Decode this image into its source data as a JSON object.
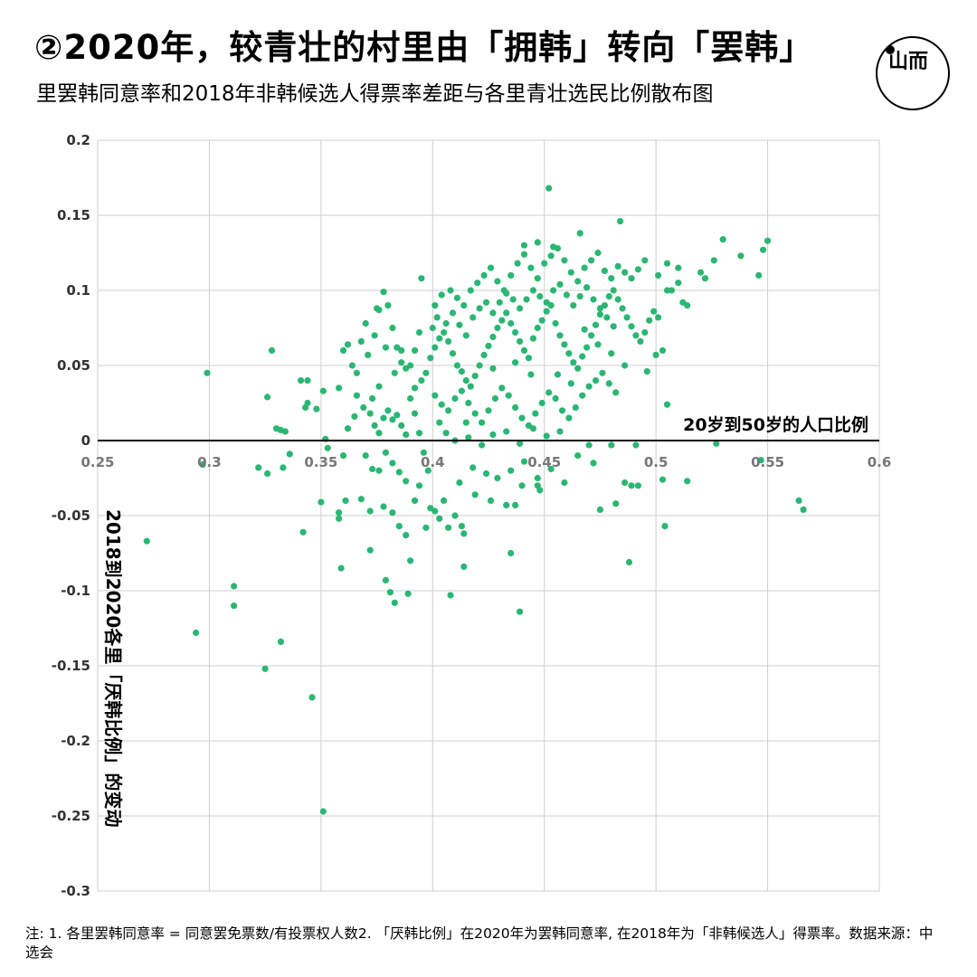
{
  "header": {
    "title": "②2020年，较青壮的村里由「拥韩」转向「罢韩」",
    "subtitle": "里罢韩同意率和2018年非韩候选人得票率差距与各里青壮选民比例散布图"
  },
  "logo": {
    "icon": "logo-circle-icon",
    "glyph": "山而"
  },
  "footnote": "注: 1. 各里罢韩同意率 = 同意罢免票数/有投票权人数2. 「厌韩比例」在2020年为罢韩同意率, 在2018年为「非韩候选人」得票率。数据来源：中选会",
  "colors": {
    "point": "#2bb673",
    "grid": "#cfcfcf",
    "axis": "#000000"
  },
  "chart_data": {
    "type": "scatter",
    "xlabel": "20岁到50岁的人口比例",
    "ylabel": "2018到2020各里「厌韩比例」的变动",
    "xlim": [
      0.25,
      0.6
    ],
    "ylim": [
      -0.3,
      0.2
    ],
    "xticks": [
      0.25,
      0.3,
      0.35,
      0.4,
      0.45,
      0.5,
      0.55,
      0.6
    ],
    "yticks": [
      0.2,
      0.15,
      0.1,
      0.05,
      0,
      -0.05,
      -0.1,
      -0.15,
      -0.2,
      -0.25,
      -0.3
    ],
    "xtick_labels": [
      "0.25",
      "0.3",
      "0.35",
      "0.4",
      "0.45",
      "0.5",
      "0.55",
      "0.6"
    ],
    "ytick_labels": [
      "0.2",
      "0.15",
      "0.1",
      "0.05",
      "0",
      "-0.05",
      "-0.1",
      "-0.15",
      "-0.2",
      "-0.25",
      "-0.3"
    ],
    "grid": true,
    "points": [
      [
        0.299,
        0.045
      ],
      [
        0.297,
        -0.016
      ],
      [
        0.272,
        -0.067
      ],
      [
        0.294,
        -0.128
      ],
      [
        0.311,
        -0.097
      ],
      [
        0.311,
        -0.11
      ],
      [
        0.326,
        0.029
      ],
      [
        0.328,
        0.06
      ],
      [
        0.322,
        -0.018
      ],
      [
        0.326,
        -0.022
      ],
      [
        0.33,
        0.008
      ],
      [
        0.332,
        0.007
      ],
      [
        0.333,
        -0.018
      ],
      [
        0.334,
        0.006
      ],
      [
        0.336,
        -0.009
      ],
      [
        0.332,
        -0.134
      ],
      [
        0.325,
        -0.152
      ],
      [
        0.341,
        0.04
      ],
      [
        0.344,
        0.04
      ],
      [
        0.344,
        0.025
      ],
      [
        0.343,
        0.022
      ],
      [
        0.348,
        0.021
      ],
      [
        0.342,
        -0.061
      ],
      [
        0.346,
        -0.171
      ],
      [
        0.351,
        -0.247
      ],
      [
        0.35,
        -0.041
      ],
      [
        0.352,
        0.001
      ],
      [
        0.353,
        -0.005
      ],
      [
        0.351,
        0.033
      ],
      [
        0.358,
        0.035
      ],
      [
        0.36,
        0.06
      ],
      [
        0.362,
        0.064
      ],
      [
        0.364,
        0.05
      ],
      [
        0.366,
        0.045
      ],
      [
        0.366,
        0.03
      ],
      [
        0.365,
        0.016
      ],
      [
        0.362,
        0.008
      ],
      [
        0.36,
        -0.01
      ],
      [
        0.361,
        -0.04
      ],
      [
        0.358,
        -0.048
      ],
      [
        0.358,
        -0.052
      ],
      [
        0.359,
        -0.085
      ],
      [
        0.368,
        0.066
      ],
      [
        0.37,
        0.078
      ],
      [
        0.371,
        0.057
      ],
      [
        0.374,
        0.07
      ],
      [
        0.375,
        0.088
      ],
      [
        0.376,
        0.087
      ],
      [
        0.378,
        0.099
      ],
      [
        0.38,
        0.09
      ],
      [
        0.382,
        0.075
      ],
      [
        0.384,
        0.062
      ],
      [
        0.386,
        0.06
      ],
      [
        0.388,
        0.048
      ],
      [
        0.39,
        0.05
      ],
      [
        0.392,
        0.06
      ],
      [
        0.394,
        0.072
      ],
      [
        0.395,
        0.108
      ],
      [
        0.372,
        0.018
      ],
      [
        0.374,
        0.01
      ],
      [
        0.376,
        0.005
      ],
      [
        0.378,
        0.015
      ],
      [
        0.38,
        0.02
      ],
      [
        0.382,
        0.014
      ],
      [
        0.384,
        0.017
      ],
      [
        0.386,
        0.01
      ],
      [
        0.388,
        0.004
      ],
      [
        0.37,
        -0.01
      ],
      [
        0.373,
        -0.019
      ],
      [
        0.376,
        -0.02
      ],
      [
        0.379,
        -0.008
      ],
      [
        0.382,
        -0.015
      ],
      [
        0.385,
        -0.021
      ],
      [
        0.388,
        -0.027
      ],
      [
        0.368,
        -0.039
      ],
      [
        0.372,
        -0.047
      ],
      [
        0.378,
        -0.044
      ],
      [
        0.382,
        -0.048
      ],
      [
        0.385,
        -0.057
      ],
      [
        0.388,
        -0.063
      ],
      [
        0.372,
        -0.073
      ],
      [
        0.379,
        -0.093
      ],
      [
        0.381,
        -0.101
      ],
      [
        0.383,
        -0.108
      ],
      [
        0.389,
        -0.102
      ],
      [
        0.39,
        -0.08
      ],
      [
        0.397,
        -0.058
      ],
      [
        0.399,
        -0.045
      ],
      [
        0.401,
        -0.047
      ],
      [
        0.403,
        -0.052
      ],
      [
        0.405,
        -0.04
      ],
      [
        0.407,
        -0.058
      ],
      [
        0.41,
        -0.05
      ],
      [
        0.413,
        -0.057
      ],
      [
        0.414,
        -0.062
      ],
      [
        0.414,
        -0.084
      ],
      [
        0.408,
        -0.103
      ],
      [
        0.39,
        0.028
      ],
      [
        0.392,
        0.035
      ],
      [
        0.395,
        0.04
      ],
      [
        0.397,
        0.045
      ],
      [
        0.399,
        0.055
      ],
      [
        0.401,
        0.062
      ],
      [
        0.403,
        0.068
      ],
      [
        0.405,
        0.072
      ],
      [
        0.407,
        0.066
      ],
      [
        0.409,
        0.058
      ],
      [
        0.411,
        0.05
      ],
      [
        0.413,
        0.046
      ],
      [
        0.415,
        0.04
      ],
      [
        0.417,
        0.036
      ],
      [
        0.419,
        0.043
      ],
      [
        0.421,
        0.05
      ],
      [
        0.423,
        0.057
      ],
      [
        0.425,
        0.063
      ],
      [
        0.427,
        0.069
      ],
      [
        0.429,
        0.075
      ],
      [
        0.431,
        0.08
      ],
      [
        0.433,
        0.085
      ],
      [
        0.435,
        0.078
      ],
      [
        0.437,
        0.072
      ],
      [
        0.439,
        0.066
      ],
      [
        0.441,
        0.06
      ],
      [
        0.443,
        0.055
      ],
      [
        0.445,
        0.068
      ],
      [
        0.447,
        0.075
      ],
      [
        0.449,
        0.08
      ],
      [
        0.451,
        0.086
      ],
      [
        0.453,
        0.09
      ],
      [
        0.455,
        0.078
      ],
      [
        0.457,
        0.07
      ],
      [
        0.459,
        0.064
      ],
      [
        0.461,
        0.058
      ],
      [
        0.463,
        0.052
      ],
      [
        0.465,
        0.048
      ],
      [
        0.467,
        0.056
      ],
      [
        0.469,
        0.062
      ],
      [
        0.471,
        0.07
      ],
      [
        0.473,
        0.077
      ],
      [
        0.475,
        0.084
      ],
      [
        0.477,
        0.09
      ],
      [
        0.479,
        0.096
      ],
      [
        0.481,
        0.1
      ],
      [
        0.483,
        0.094
      ],
      [
        0.485,
        0.088
      ],
      [
        0.487,
        0.082
      ],
      [
        0.489,
        0.076
      ],
      [
        0.491,
        0.07
      ],
      [
        0.493,
        0.066
      ],
      [
        0.495,
        0.072
      ],
      [
        0.497,
        0.08
      ],
      [
        0.499,
        0.086
      ],
      [
        0.401,
        0.09
      ],
      [
        0.404,
        0.097
      ],
      [
        0.408,
        0.1
      ],
      [
        0.411,
        0.095
      ],
      [
        0.414,
        0.09
      ],
      [
        0.417,
        0.1
      ],
      [
        0.42,
        0.105
      ],
      [
        0.423,
        0.11
      ],
      [
        0.426,
        0.115
      ],
      [
        0.429,
        0.106
      ],
      [
        0.432,
        0.1
      ],
      [
        0.435,
        0.11
      ],
      [
        0.438,
        0.118
      ],
      [
        0.441,
        0.124
      ],
      [
        0.444,
        0.115
      ],
      [
        0.447,
        0.108
      ],
      [
        0.45,
        0.118
      ],
      [
        0.453,
        0.123
      ],
      [
        0.456,
        0.128
      ],
      [
        0.459,
        0.12
      ],
      [
        0.462,
        0.112
      ],
      [
        0.465,
        0.106
      ],
      [
        0.468,
        0.115
      ],
      [
        0.471,
        0.12
      ],
      [
        0.474,
        0.125
      ],
      [
        0.477,
        0.113
      ],
      [
        0.48,
        0.108
      ],
      [
        0.483,
        0.116
      ],
      [
        0.486,
        0.112
      ],
      [
        0.489,
        0.108
      ],
      [
        0.492,
        0.114
      ],
      [
        0.495,
        0.12
      ],
      [
        0.441,
        0.13
      ],
      [
        0.447,
        0.132
      ],
      [
        0.454,
        0.129
      ],
      [
        0.466,
        0.138
      ],
      [
        0.452,
        0.168
      ],
      [
        0.484,
        0.146
      ],
      [
        0.401,
        0.03
      ],
      [
        0.404,
        0.024
      ],
      [
        0.407,
        0.02
      ],
      [
        0.41,
        0.028
      ],
      [
        0.413,
        0.033
      ],
      [
        0.416,
        0.025
      ],
      [
        0.419,
        0.018
      ],
      [
        0.422,
        0.012
      ],
      [
        0.425,
        0.02
      ],
      [
        0.428,
        0.028
      ],
      [
        0.431,
        0.035
      ],
      [
        0.434,
        0.03
      ],
      [
        0.437,
        0.022
      ],
      [
        0.44,
        0.015
      ],
      [
        0.443,
        0.01
      ],
      [
        0.446,
        0.018
      ],
      [
        0.449,
        0.025
      ],
      [
        0.452,
        0.032
      ],
      [
        0.455,
        0.028
      ],
      [
        0.458,
        0.02
      ],
      [
        0.461,
        0.015
      ],
      [
        0.464,
        0.022
      ],
      [
        0.467,
        0.03
      ],
      [
        0.47,
        0.036
      ],
      [
        0.473,
        0.04
      ],
      [
        0.476,
        0.045
      ],
      [
        0.479,
        0.038
      ],
      [
        0.482,
        0.032
      ],
      [
        0.406,
        0.005
      ],
      [
        0.41,
        0.0
      ],
      [
        0.416,
        0.002
      ],
      [
        0.422,
        -0.003
      ],
      [
        0.427,
        0.004
      ],
      [
        0.433,
        0.006
      ],
      [
        0.439,
        -0.002
      ],
      [
        0.445,
        0.008
      ],
      [
        0.451,
        0.003
      ],
      [
        0.457,
        0.006
      ],
      [
        0.418,
        -0.018
      ],
      [
        0.424,
        -0.022
      ],
      [
        0.429,
        -0.025
      ],
      [
        0.435,
        -0.02
      ],
      [
        0.441,
        -0.014
      ],
      [
        0.447,
        -0.025
      ],
      [
        0.453,
        -0.019
      ],
      [
        0.459,
        -0.028
      ],
      [
        0.465,
        -0.01
      ],
      [
        0.47,
        -0.003
      ],
      [
        0.472,
        -0.015
      ],
      [
        0.486,
        -0.028
      ],
      [
        0.489,
        -0.03
      ],
      [
        0.492,
        -0.03
      ],
      [
        0.48,
        -0.003
      ],
      [
        0.491,
        -0.003
      ],
      [
        0.412,
        -0.028
      ],
      [
        0.419,
        -0.036
      ],
      [
        0.426,
        -0.04
      ],
      [
        0.433,
        -0.043
      ],
      [
        0.437,
        -0.043
      ],
      [
        0.44,
        -0.03
      ],
      [
        0.447,
        -0.03
      ],
      [
        0.448,
        -0.033
      ],
      [
        0.475,
        -0.046
      ],
      [
        0.482,
        -0.042
      ],
      [
        0.488,
        -0.081
      ],
      [
        0.435,
        -0.075
      ],
      [
        0.439,
        -0.114
      ],
      [
        0.503,
        -0.026
      ],
      [
        0.504,
        -0.057
      ],
      [
        0.514,
        -0.027
      ],
      [
        0.505,
        0.024
      ],
      [
        0.5,
        0.057
      ],
      [
        0.503,
        0.06
      ],
      [
        0.501,
        0.082
      ],
      [
        0.505,
        0.1
      ],
      [
        0.507,
        0.1
      ],
      [
        0.51,
        0.105
      ],
      [
        0.512,
        0.092
      ],
      [
        0.514,
        0.09
      ],
      [
        0.501,
        0.11
      ],
      [
        0.505,
        0.118
      ],
      [
        0.51,
        0.115
      ],
      [
        0.52,
        0.112
      ],
      [
        0.522,
        0.108
      ],
      [
        0.526,
        0.12
      ],
      [
        0.53,
        0.134
      ],
      [
        0.538,
        0.123
      ],
      [
        0.546,
        0.11
      ],
      [
        0.548,
        0.127
      ],
      [
        0.55,
        0.133
      ],
      [
        0.527,
        -0.002
      ],
      [
        0.547,
        -0.013
      ],
      [
        0.564,
        -0.04
      ],
      [
        0.566,
        -0.046
      ],
      [
        0.4,
        0.075
      ],
      [
        0.402,
        0.082
      ],
      [
        0.406,
        0.078
      ],
      [
        0.409,
        0.085
      ],
      [
        0.412,
        0.077
      ],
      [
        0.415,
        0.07
      ],
      [
        0.418,
        0.082
      ],
      [
        0.421,
        0.088
      ],
      [
        0.424,
        0.092
      ],
      [
        0.427,
        0.085
      ],
      [
        0.43,
        0.092
      ],
      [
        0.433,
        0.098
      ],
      [
        0.436,
        0.094
      ],
      [
        0.439,
        0.088
      ],
      [
        0.442,
        0.094
      ],
      [
        0.445,
        0.1
      ],
      [
        0.448,
        0.096
      ],
      [
        0.451,
        0.092
      ],
      [
        0.454,
        0.1
      ],
      [
        0.457,
        0.104
      ],
      [
        0.46,
        0.097
      ],
      [
        0.463,
        0.09
      ],
      [
        0.466,
        0.096
      ],
      [
        0.469,
        0.102
      ],
      [
        0.472,
        0.094
      ],
      [
        0.475,
        0.088
      ],
      [
        0.478,
        0.082
      ],
      [
        0.481,
        0.076
      ],
      [
        0.392,
        0.018
      ],
      [
        0.394,
        0.005
      ],
      [
        0.396,
        -0.008
      ],
      [
        0.398,
        -0.02
      ],
      [
        0.394,
        -0.03
      ],
      [
        0.392,
        -0.04
      ],
      [
        0.383,
        0.045
      ],
      [
        0.386,
        0.052
      ],
      [
        0.379,
        0.062
      ],
      [
        0.376,
        0.036
      ],
      [
        0.373,
        0.028
      ],
      [
        0.369,
        0.022
      ],
      [
        0.403,
        0.012
      ],
      [
        0.415,
        0.012
      ],
      [
        0.427,
        0.048
      ],
      [
        0.437,
        0.052
      ],
      [
        0.444,
        0.044
      ],
      [
        0.456,
        0.044
      ],
      [
        0.462,
        0.038
      ],
      [
        0.468,
        0.074
      ],
      [
        0.474,
        0.064
      ],
      [
        0.48,
        0.058
      ],
      [
        0.486,
        0.05
      ],
      [
        0.496,
        0.046
      ]
    ]
  }
}
